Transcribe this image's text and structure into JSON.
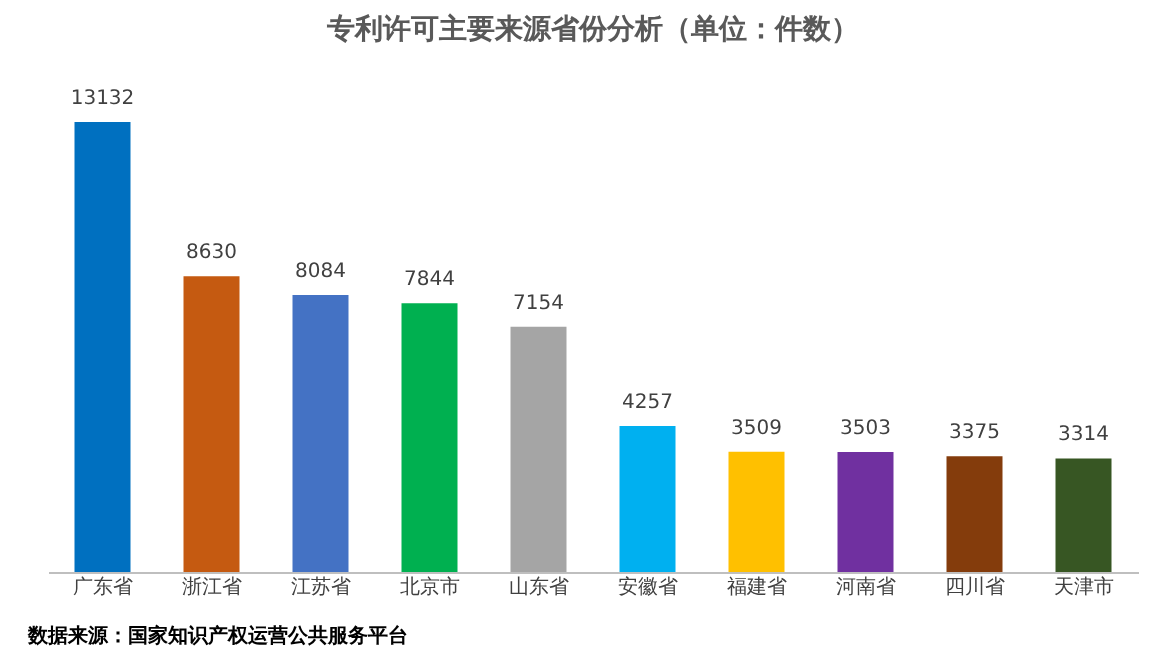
{
  "chart_data": {
    "type": "bar",
    "title": "专利许可主要来源省份分析（单位：件数）",
    "categories": [
      "广东省",
      "浙江省",
      "江苏省",
      "北京市",
      "山东省",
      "安徽省",
      "福建省",
      "河南省",
      "四川省",
      "天津市"
    ],
    "values": [
      13132,
      8630,
      8084,
      7844,
      7154,
      4257,
      3509,
      3503,
      3375,
      3314
    ],
    "colors": [
      "#0070c0",
      "#c55a11",
      "#4472c4",
      "#00b050",
      "#a5a5a5",
      "#00b0f0",
      "#ffc000",
      "#7030a0",
      "#843c0c",
      "#375623"
    ],
    "data_labels": true,
    "annotations": [
      "数据来源：国家知识产权运营公共服务平台"
    ]
  }
}
